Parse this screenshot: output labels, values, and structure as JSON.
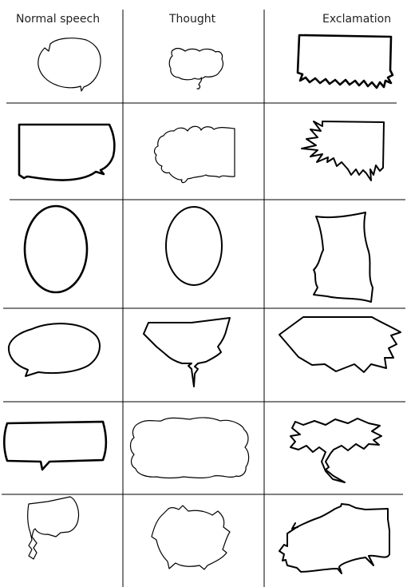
{
  "columns": [
    {
      "key": "normal",
      "label": "Normal speech"
    },
    {
      "key": "thought",
      "label": "Thought"
    },
    {
      "key": "exclamation",
      "label": "Exclamation"
    }
  ],
  "rows": [
    {
      "normal": "speech-bubble-icon",
      "thought": "thought-bubble-icon",
      "exclamation": "exclamation-bubble-icon"
    },
    {
      "normal": "speech-bubble-icon",
      "thought": "thought-bubble-icon",
      "exclamation": "exclamation-bubble-icon"
    },
    {
      "normal": "speech-bubble-icon",
      "thought": "thought-bubble-icon",
      "exclamation": "exclamation-bubble-icon"
    },
    {
      "normal": "speech-bubble-icon",
      "thought": "thought-bubble-icon",
      "exclamation": "exclamation-bubble-icon"
    },
    {
      "normal": "speech-bubble-icon",
      "thought": "thought-bubble-icon",
      "exclamation": "exclamation-bubble-icon"
    },
    {
      "normal": "speech-bubble-icon",
      "thought": "thought-bubble-icon",
      "exclamation": "exclamation-bubble-icon"
    }
  ]
}
